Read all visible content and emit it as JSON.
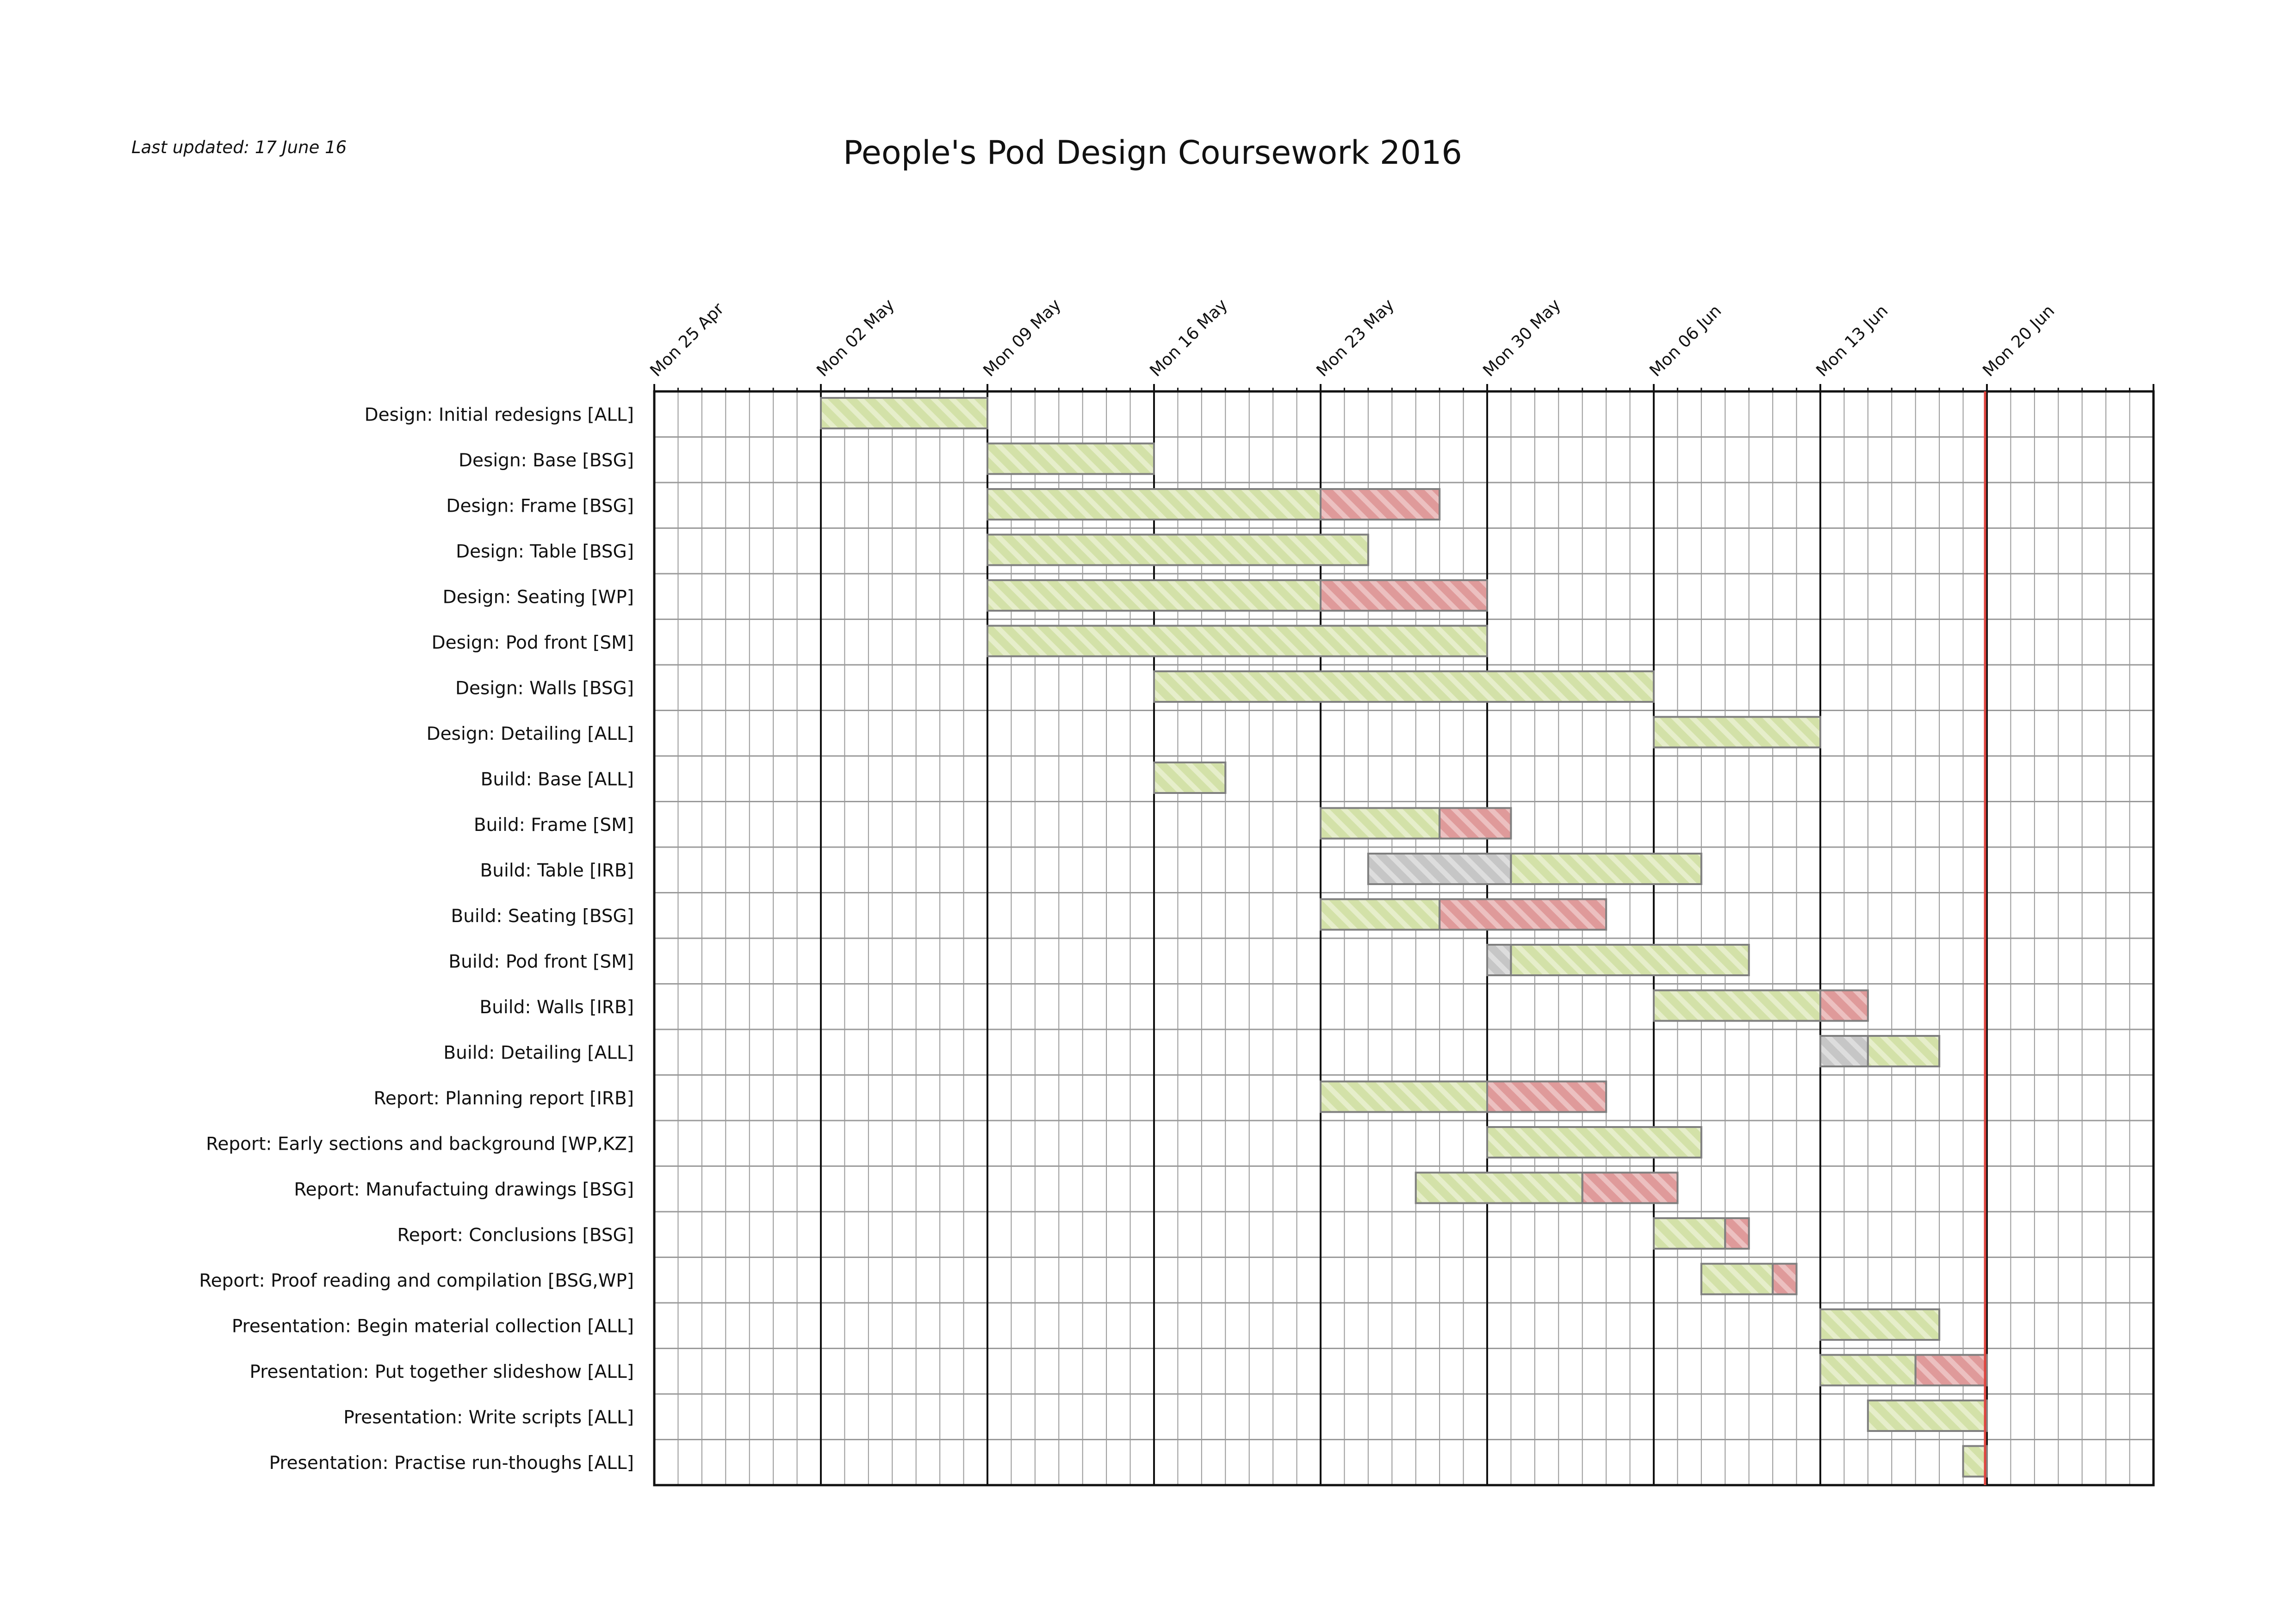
{
  "last_updated": "Last updated: 17 June 16",
  "colors": {
    "planned": "#d3e1a8",
    "planned_stripe": "#e6eeca",
    "overrun": "#df9a9a",
    "overrun_stripe": "#ecc0c0",
    "delay": "#c6c6c6",
    "delay_stripe": "#dddddd",
    "today_line": "#e0453f",
    "bar_border": "#7f7f7f",
    "grid": "#9a9a9a",
    "week_line": "#111111"
  },
  "chart_data": {
    "type": "gantt",
    "title": "People's Pod Design Coursework 2016",
    "x_start": "2016-04-25",
    "x_end": "2016-06-27",
    "today": "2016-06-20",
    "week_ticks": [
      "Mon 25 Apr",
      "Mon 02 May",
      "Mon 09 May",
      "Mon 16 May",
      "Mon 23 May",
      "Mon 30 May",
      "Mon 06 Jun",
      "Mon 13 Jun",
      "Mon 20 Jun"
    ],
    "tasks": [
      {
        "name": "Design: Initial redesigns [ALL]",
        "segments": [
          {
            "kind": "planned",
            "start": "2016-05-02",
            "end": "2016-05-09"
          }
        ]
      },
      {
        "name": "Design: Base [BSG]",
        "segments": [
          {
            "kind": "planned",
            "start": "2016-05-09",
            "end": "2016-05-16"
          }
        ]
      },
      {
        "name": "Design: Frame [BSG]",
        "segments": [
          {
            "kind": "planned",
            "start": "2016-05-09",
            "end": "2016-05-23"
          },
          {
            "kind": "overrun",
            "start": "2016-05-23",
            "end": "2016-05-28"
          }
        ]
      },
      {
        "name": "Design: Table [BSG]",
        "segments": [
          {
            "kind": "planned",
            "start": "2016-05-09",
            "end": "2016-05-25"
          }
        ]
      },
      {
        "name": "Design: Seating [WP]",
        "segments": [
          {
            "kind": "planned",
            "start": "2016-05-09",
            "end": "2016-05-23"
          },
          {
            "kind": "overrun",
            "start": "2016-05-23",
            "end": "2016-05-30"
          }
        ]
      },
      {
        "name": "Design: Pod front [SM]",
        "segments": [
          {
            "kind": "planned",
            "start": "2016-05-09",
            "end": "2016-05-30"
          }
        ]
      },
      {
        "name": "Design: Walls [BSG]",
        "segments": [
          {
            "kind": "planned",
            "start": "2016-05-16",
            "end": "2016-06-06"
          }
        ]
      },
      {
        "name": "Design: Detailing [ALL]",
        "segments": [
          {
            "kind": "planned",
            "start": "2016-06-06",
            "end": "2016-06-13"
          }
        ]
      },
      {
        "name": "Build: Base [ALL]",
        "segments": [
          {
            "kind": "planned",
            "start": "2016-05-16",
            "end": "2016-05-19"
          }
        ]
      },
      {
        "name": "Build: Frame [SM]",
        "segments": [
          {
            "kind": "planned",
            "start": "2016-05-23",
            "end": "2016-05-28"
          },
          {
            "kind": "overrun",
            "start": "2016-05-28",
            "end": "2016-05-31"
          }
        ]
      },
      {
        "name": "Build: Table [IRB]",
        "segments": [
          {
            "kind": "delay",
            "start": "2016-05-25",
            "end": "2016-05-31"
          },
          {
            "kind": "planned",
            "start": "2016-05-31",
            "end": "2016-06-08"
          }
        ]
      },
      {
        "name": "Build: Seating [BSG]",
        "segments": [
          {
            "kind": "planned",
            "start": "2016-05-23",
            "end": "2016-05-28"
          },
          {
            "kind": "overrun",
            "start": "2016-05-28",
            "end": "2016-06-04"
          }
        ]
      },
      {
        "name": "Build: Pod front [SM]",
        "segments": [
          {
            "kind": "delay",
            "start": "2016-05-30",
            "end": "2016-05-31"
          },
          {
            "kind": "planned",
            "start": "2016-05-31",
            "end": "2016-06-10"
          }
        ]
      },
      {
        "name": "Build: Walls  [IRB]",
        "segments": [
          {
            "kind": "planned",
            "start": "2016-06-06",
            "end": "2016-06-13"
          },
          {
            "kind": "overrun",
            "start": "2016-06-13",
            "end": "2016-06-15"
          }
        ]
      },
      {
        "name": "Build: Detailing  [ALL]",
        "segments": [
          {
            "kind": "delay",
            "start": "2016-06-13",
            "end": "2016-06-15"
          },
          {
            "kind": "planned",
            "start": "2016-06-15",
            "end": "2016-06-18"
          }
        ]
      },
      {
        "name": "Report: Planning report [IRB]",
        "segments": [
          {
            "kind": "planned",
            "start": "2016-05-23",
            "end": "2016-05-30"
          },
          {
            "kind": "overrun",
            "start": "2016-05-30",
            "end": "2016-06-04"
          }
        ]
      },
      {
        "name": "Report: Early sections and background [WP,KZ]",
        "segments": [
          {
            "kind": "planned",
            "start": "2016-05-30",
            "end": "2016-06-08"
          }
        ]
      },
      {
        "name": "Report: Manufactuing drawings [BSG]",
        "segments": [
          {
            "kind": "planned",
            "start": "2016-05-27",
            "end": "2016-06-03"
          },
          {
            "kind": "overrun",
            "start": "2016-06-03",
            "end": "2016-06-07"
          }
        ]
      },
      {
        "name": "Report: Conclusions [BSG]",
        "segments": [
          {
            "kind": "planned",
            "start": "2016-06-06",
            "end": "2016-06-09"
          },
          {
            "kind": "overrun",
            "start": "2016-06-09",
            "end": "2016-06-10"
          }
        ]
      },
      {
        "name": "Report: Proof reading and compilation [BSG,WP]",
        "segments": [
          {
            "kind": "planned",
            "start": "2016-06-08",
            "end": "2016-06-11"
          },
          {
            "kind": "overrun",
            "start": "2016-06-11",
            "end": "2016-06-12"
          }
        ]
      },
      {
        "name": "Presentation: Begin material collection [ALL]",
        "segments": [
          {
            "kind": "planned",
            "start": "2016-06-13",
            "end": "2016-06-18"
          }
        ]
      },
      {
        "name": "Presentation: Put together slideshow [ALL]",
        "segments": [
          {
            "kind": "planned",
            "start": "2016-06-13",
            "end": "2016-06-17"
          },
          {
            "kind": "overrun",
            "start": "2016-06-17",
            "end": "2016-06-20"
          }
        ]
      },
      {
        "name": "Presentation: Write scripts [ALL]",
        "segments": [
          {
            "kind": "planned",
            "start": "2016-06-15",
            "end": "2016-06-20"
          }
        ]
      },
      {
        "name": "Presentation: Practise run-thoughs [ALL]",
        "segments": [
          {
            "kind": "planned",
            "start": "2016-06-19",
            "end": "2016-06-20"
          }
        ]
      }
    ]
  }
}
